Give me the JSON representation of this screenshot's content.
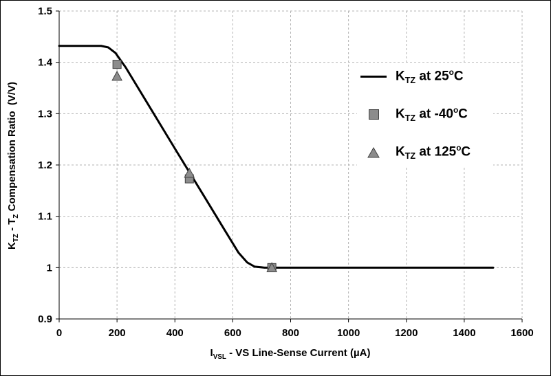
{
  "figure": {
    "background": "#ffffff",
    "border_color": "#000000"
  },
  "axes": {
    "x_label": {
      "p1": "I",
      "sub1": "VSL",
      "p2": " - VS Line-Sense Current (µA)"
    },
    "y_label": {
      "p1": "K",
      "sub1": "TZ",
      "p2": " - T",
      "sub2": "Z",
      "p3": " Compensation Ratio  (V/V)"
    }
  },
  "legend": {
    "items": [
      {
        "marker": "line",
        "k": "K",
        "sub": "TZ",
        "mid": " at 25",
        "sup": "o",
        "end": "C"
      },
      {
        "marker": "square",
        "k": "K",
        "sub": "TZ",
        "mid": " at -40",
        "sup": "o",
        "end": "C"
      },
      {
        "marker": "triangle",
        "k": "K",
        "sub": "TZ",
        "mid": " at 125",
        "sup": "o",
        "end": "C"
      }
    ]
  },
  "chart_data": {
    "type": "line",
    "title": "",
    "xlabel": "IVSL - VS Line-Sense Current (µA)",
    "ylabel": "KTZ - TZ Compensation Ratio (V/V)",
    "xlim": [
      0,
      1600
    ],
    "ylim": [
      0.9,
      1.5
    ],
    "x_ticks": [
      0,
      200,
      400,
      600,
      800,
      1000,
      1200,
      1400,
      1600
    ],
    "x_tick_labels": [
      "0",
      "200",
      "400",
      "600",
      "800",
      "1000",
      "1200",
      "1400",
      "1600"
    ],
    "y_ticks": [
      0.9,
      1.0,
      1.1,
      1.2,
      1.3,
      1.4,
      1.5
    ],
    "y_tick_labels": [
      "0.9",
      "1",
      "1.1",
      "1.2",
      "1.3",
      "1.4",
      "1.5"
    ],
    "grid": "dashed",
    "grid_color": "#b3b3b3",
    "axis_color": "#000000",
    "legend_position": "upper-right",
    "series": [
      {
        "name": "KTZ at 25°C",
        "type": "line",
        "color": "#000000",
        "width": 3,
        "x": [
          0,
          145,
          170,
          195,
          230,
          300,
          400,
          500,
          570,
          620,
          650,
          675,
          710,
          1500
        ],
        "y": [
          1.432,
          1.432,
          1.429,
          1.418,
          1.39,
          1.325,
          1.232,
          1.14,
          1.075,
          1.029,
          1.01,
          1.002,
          1.0,
          1.0
        ]
      },
      {
        "name": "KTZ at -40°C",
        "type": "scatter",
        "marker": "square",
        "fill": "#8c8c8c",
        "stroke": "#404040",
        "x": [
          200,
          450,
          735
        ],
        "y": [
          1.396,
          1.173,
          1.0
        ]
      },
      {
        "name": "KTZ at 125°C",
        "type": "scatter",
        "marker": "triangle",
        "fill": "#8c8c8c",
        "stroke": "#404040",
        "x": [
          200,
          450,
          735
        ],
        "y": [
          1.373,
          1.184,
          1.0
        ]
      }
    ]
  }
}
